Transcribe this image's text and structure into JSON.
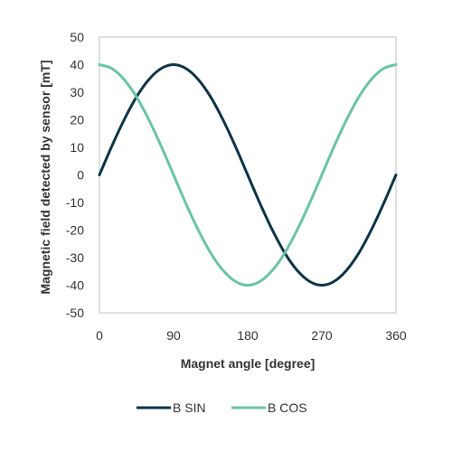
{
  "chart_data": {
    "type": "line",
    "title": "",
    "xlabel": "Magnet angle [degree]",
    "ylabel": "Magnetic field detected by sensor [mT]",
    "xlim": [
      0,
      360
    ],
    "ylim": [
      -50,
      50
    ],
    "xticks": [
      "0",
      "90",
      "180",
      "270",
      "360"
    ],
    "xtick_values": [
      0,
      90,
      180,
      270,
      360
    ],
    "yticks": [
      "50",
      "40",
      "30",
      "20",
      "10",
      "0",
      "-10",
      "-20",
      "-30",
      "-40",
      "-50"
    ],
    "ytick_values": [
      50,
      40,
      30,
      20,
      10,
      0,
      -10,
      -20,
      -30,
      -40,
      -50
    ],
    "grid": false,
    "legend_position": "bottom",
    "x": [
      0,
      15,
      30,
      45,
      60,
      75,
      90,
      105,
      120,
      135,
      150,
      165,
      180,
      195,
      210,
      225,
      240,
      255,
      270,
      285,
      300,
      315,
      330,
      345,
      360
    ],
    "series": [
      {
        "name": "B SIN",
        "color": "#0d3447",
        "values": [
          0,
          10.4,
          20,
          28.3,
          34.6,
          38.6,
          40,
          38.6,
          34.6,
          28.3,
          20,
          10.4,
          0,
          -10.4,
          -20,
          -28.3,
          -34.6,
          -38.6,
          -40,
          -38.6,
          -34.6,
          -28.3,
          -20,
          -10.4,
          0
        ]
      },
      {
        "name": "B COS",
        "color": "#6bc3a6",
        "values": [
          40,
          38.6,
          34.6,
          28.3,
          20,
          10.4,
          0,
          -10.4,
          -20,
          -28.3,
          -34.6,
          -38.6,
          -40,
          -38.6,
          -34.6,
          -28.3,
          -20,
          -10.4,
          0,
          10.4,
          20,
          28.3,
          34.6,
          38.6,
          40
        ]
      }
    ]
  }
}
